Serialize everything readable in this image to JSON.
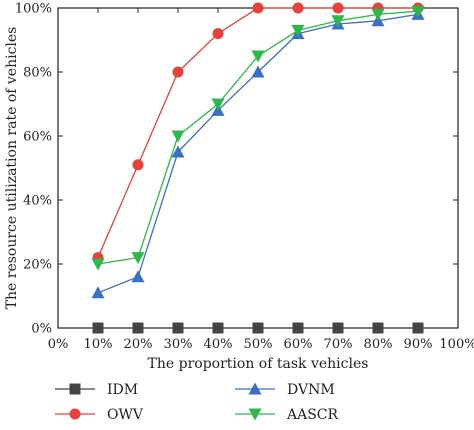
{
  "chart_data": {
    "type": "line",
    "xlabel": "The proportion of task vehicles",
    "ylabel": "The resource utilization rate of vehicles",
    "xlim": [
      0,
      100
    ],
    "ylim": [
      0,
      100
    ],
    "x_ticks": [
      "0%",
      "10%",
      "20%",
      "30%",
      "40%",
      "50%",
      "60%",
      "70%",
      "80%",
      "90%",
      "100%"
    ],
    "y_ticks": [
      "0%",
      "20%",
      "40%",
      "60%",
      "80%",
      "100%"
    ],
    "x": [
      10,
      20,
      30,
      40,
      50,
      60,
      70,
      80,
      90
    ],
    "grid": false,
    "legend_position": "bottom",
    "series": [
      {
        "name": "IDM",
        "color": "#444444",
        "marker": "square",
        "values": [
          0,
          0,
          0,
          0,
          0,
          0,
          0,
          0,
          0
        ]
      },
      {
        "name": "OWV",
        "color": "#e8413c",
        "marker": "circle",
        "values": [
          22,
          51,
          80,
          92,
          100,
          100,
          100,
          100,
          100
        ]
      },
      {
        "name": "DVNM",
        "color": "#3b6fc4",
        "marker": "triangle-up",
        "values": [
          11,
          16,
          55,
          68,
          80,
          92,
          95,
          96,
          98
        ]
      },
      {
        "name": "AASCR",
        "color": "#2db84a",
        "marker": "triangle-down",
        "values": [
          20,
          22,
          60,
          70,
          85,
          93,
          96,
          98,
          99
        ]
      }
    ]
  }
}
